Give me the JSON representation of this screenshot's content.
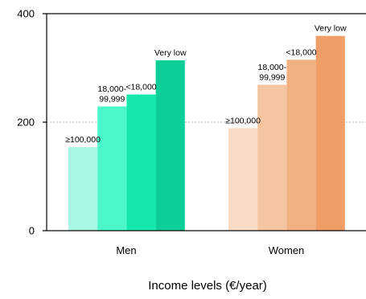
{
  "chart_data": {
    "type": "bar",
    "title": "",
    "xlabel": "Income levels (€/year)",
    "ylabel": "",
    "ylim": [
      0,
      400
    ],
    "yticks": [
      0,
      200,
      400
    ],
    "grid": "dotted line at 200",
    "categories": [
      "Men",
      "Women"
    ],
    "groups": [
      {
        "category": "Men",
        "bars": [
          {
            "label": "≥100,000",
            "value": 154,
            "color": "#a8f7e4"
          },
          {
            "label": "18,000-99,999",
            "value": 229,
            "color": "#4bf7c9"
          },
          {
            "label": "<18,000",
            "value": 251,
            "color": "#14e8ac"
          },
          {
            "label": "Very low",
            "value": 314,
            "color": "#0ccf97"
          }
        ]
      },
      {
        "category": "Women",
        "bars": [
          {
            "label": "≥100,000",
            "value": 189,
            "color": "#f9dac6"
          },
          {
            "label": "18,000-99,999",
            "value": 269,
            "color": "#f5c4a0"
          },
          {
            "label": "<18,000",
            "value": 315,
            "color": "#f1b080"
          },
          {
            "label": "Very low",
            "value": 359,
            "color": "#ee9e66"
          }
        ]
      }
    ]
  }
}
